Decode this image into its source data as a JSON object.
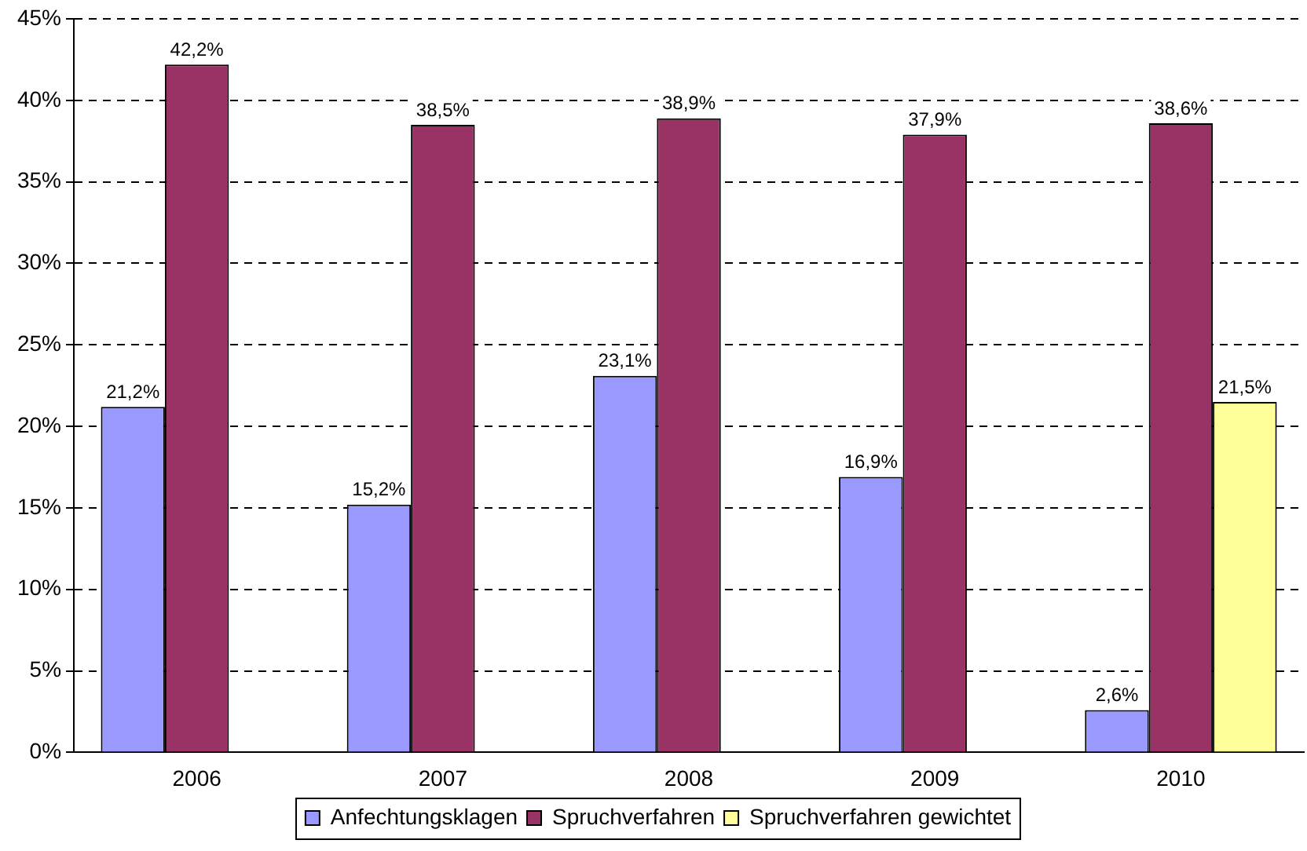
{
  "chart_data": {
    "type": "bar",
    "categories": [
      "2006",
      "2007",
      "2008",
      "2009",
      "2010"
    ],
    "series": [
      {
        "name": "Anfechtungsklagen",
        "color": "#9999ff",
        "values": [
          21.2,
          15.2,
          23.1,
          16.9,
          2.6
        ],
        "value_labels": [
          "21,2%",
          "15,2%",
          "23,1%",
          "16,9%",
          "2,6%"
        ]
      },
      {
        "name": "Spruchverfahren",
        "color": "#993366",
        "values": [
          42.2,
          38.5,
          38.9,
          37.9,
          38.6
        ],
        "value_labels": [
          "42,2%",
          "38,5%",
          "38,9%",
          "37,9%",
          "38,6%"
        ]
      },
      {
        "name": "Spruchverfahren gewichtet",
        "color": "#ffff99",
        "values": [
          null,
          null,
          null,
          null,
          21.5
        ],
        "value_labels": [
          null,
          null,
          null,
          null,
          "21,5%"
        ]
      }
    ],
    "ylim": [
      0,
      45
    ],
    "yticks": [
      {
        "value": 0,
        "label": "0%"
      },
      {
        "value": 5,
        "label": "5%"
      },
      {
        "value": 10,
        "label": "10%"
      },
      {
        "value": 15,
        "label": "15%"
      },
      {
        "value": 20,
        "label": "20%"
      },
      {
        "value": 25,
        "label": "25%"
      },
      {
        "value": 30,
        "label": "30%"
      },
      {
        "value": 35,
        "label": "35%"
      },
      {
        "value": 40,
        "label": "40%"
      },
      {
        "value": 45,
        "label": "45%"
      }
    ],
    "grid": "y",
    "legend": "bottom"
  }
}
